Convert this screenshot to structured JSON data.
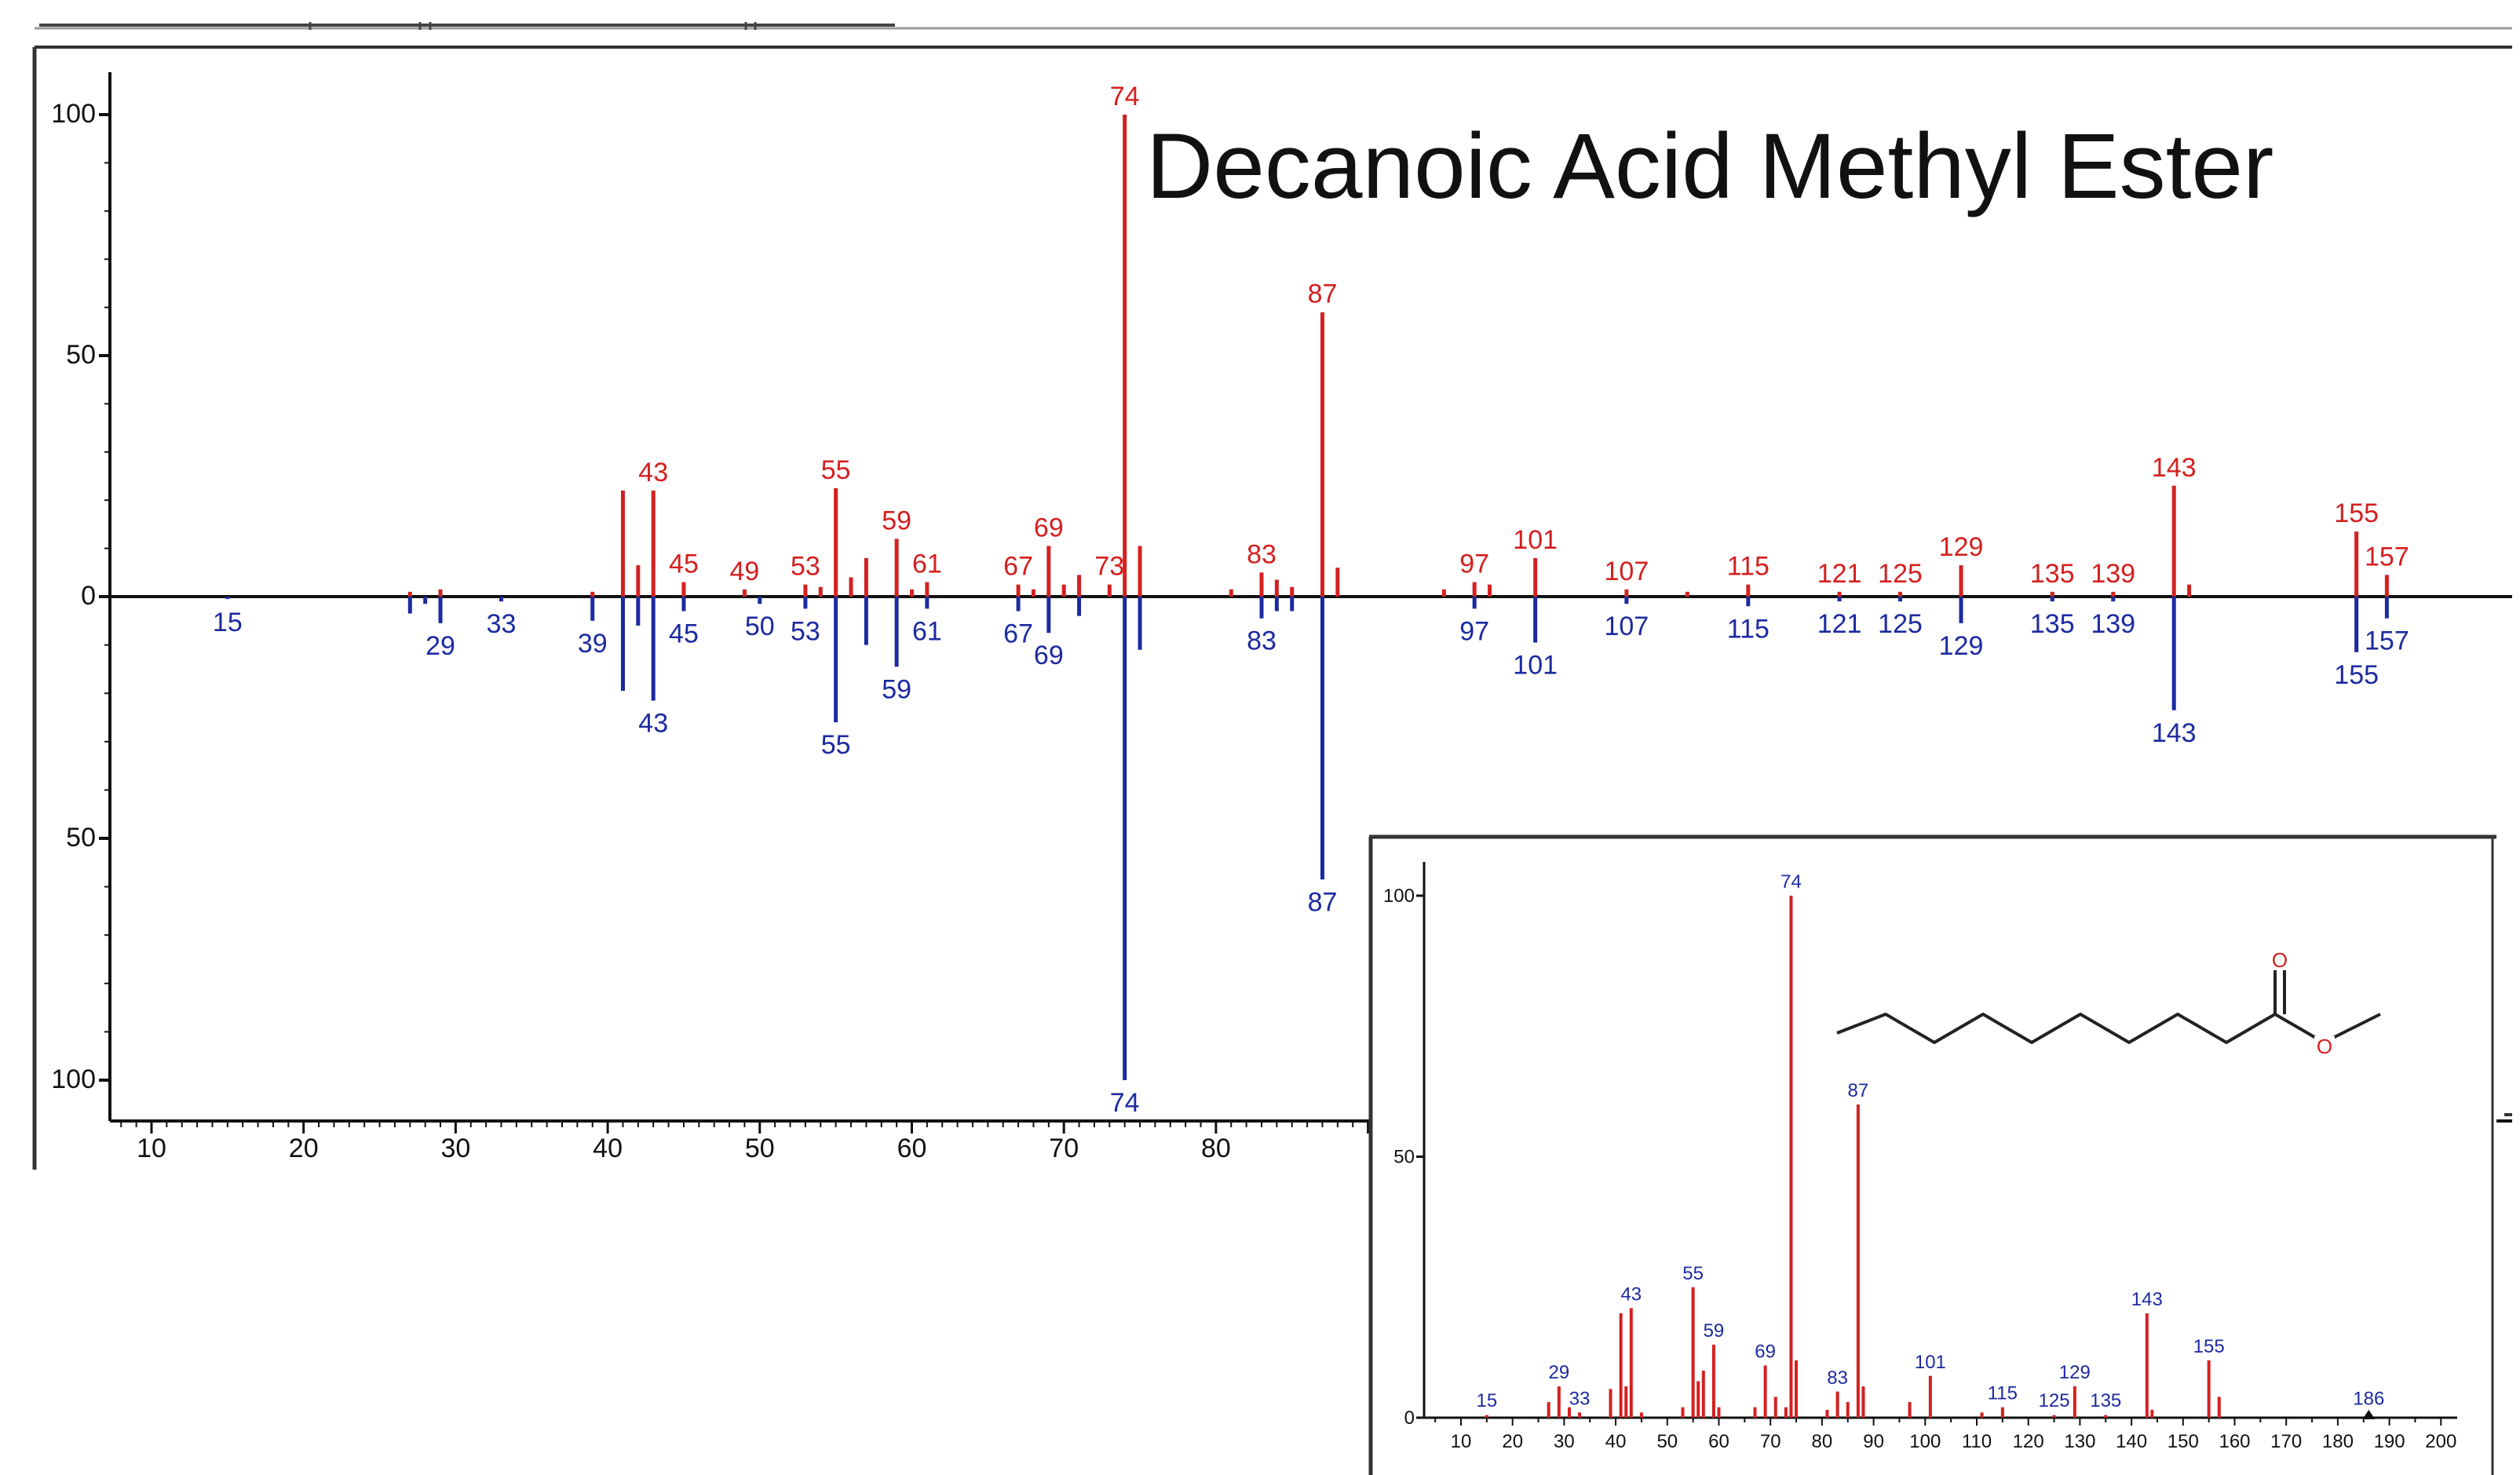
{
  "colors": {
    "library": "#d42020",
    "sample": "#1c2aa0",
    "axis": "#111111",
    "frame": "#222222",
    "title": "#111111"
  },
  "chart_data": [
    {
      "type": "bar",
      "subtype": "mirror-mass-spectrum",
      "title": "Decanoic Acid Methyl Ester",
      "xlabel": "",
      "ylabel": "",
      "xlim": [
        7,
        158
      ],
      "ylim_top": [
        0,
        100
      ],
      "ylim_bottom": [
        0,
        100
      ],
      "x_ticks": [
        10,
        20,
        30,
        40,
        50,
        60,
        70,
        80
      ],
      "x_tick_labels": [
        "10",
        "20",
        "30",
        "40",
        "50",
        "60",
        "70",
        "80"
      ],
      "y_ticks": [
        100,
        50,
        0,
        50,
        100
      ],
      "y_tick_labels": [
        "100",
        "50",
        "0",
        "50",
        "100"
      ],
      "grid": false,
      "series": [
        {
          "key": "top",
          "x": [
            27,
            29,
            39,
            41,
            42,
            43,
            45,
            49,
            53,
            54,
            55,
            56,
            57,
            59,
            60,
            61,
            67,
            68,
            69,
            70,
            71,
            73,
            74,
            75,
            81,
            83,
            84,
            85,
            87,
            88,
            95,
            97,
            98,
            101,
            107,
            111,
            115,
            121,
            125,
            129,
            135,
            139,
            143,
            144,
            155,
            157
          ],
          "values": [
            1,
            1.5,
            1,
            22,
            6.5,
            22,
            3,
            1.5,
            2.5,
            2,
            22.5,
            4,
            8,
            12,
            1.5,
            3,
            2.5,
            1.5,
            10.5,
            2.5,
            4.5,
            2.5,
            100,
            10.5,
            1.5,
            5,
            3.5,
            2,
            59,
            6,
            1.5,
            3,
            2.5,
            8,
            1.5,
            1,
            2.5,
            1,
            1,
            6.5,
            1,
            1,
            23,
            2.5,
            13.5,
            4.5
          ],
          "labels": [
            "",
            "",
            "",
            "",
            "",
            "43",
            "45",
            "49",
            "53",
            "",
            "55",
            "",
            "",
            "59",
            "",
            "61",
            "67",
            "",
            "69",
            "",
            "",
            "73",
            "74",
            "",
            "",
            "83",
            "",
            "",
            "87",
            "",
            "",
            "97",
            "",
            "101",
            "107",
            "",
            "115",
            "121",
            "125",
            "129",
            "135",
            "139",
            "143",
            "",
            "155",
            "157"
          ]
        },
        {
          "key": "bottom",
          "x": [
            15,
            27,
            28,
            29,
            33,
            39,
            41,
            42,
            43,
            45,
            50,
            53,
            55,
            57,
            59,
            61,
            67,
            69,
            71,
            74,
            75,
            83,
            84,
            85,
            87,
            97,
            101,
            107,
            115,
            121,
            125,
            129,
            135,
            139,
            143,
            155,
            157
          ],
          "values": [
            0.5,
            3.5,
            1.5,
            5.5,
            1,
            5,
            19.5,
            6,
            21.5,
            3,
            1.5,
            2.5,
            26,
            10,
            14.5,
            2.5,
            3,
            7.5,
            4,
            100,
            11,
            4.5,
            3,
            3,
            58.5,
            2.5,
            9.5,
            1.5,
            2,
            1,
            1,
            5.5,
            1,
            1,
            23.5,
            11.5,
            4.5
          ],
          "labels": [
            "15",
            "",
            "",
            "29",
            "33",
            "39",
            "",
            "",
            "43",
            "45",
            "50",
            "53",
            "55",
            "",
            "59",
            "61",
            "67",
            "69",
            "",
            "74",
            "",
            "83",
            "",
            "",
            "87",
            "97",
            "101",
            "107",
            "115",
            "121",
            "125",
            "129",
            "135",
            "139",
            "143",
            "155",
            "157"
          ]
        }
      ]
    },
    {
      "type": "bar",
      "subtype": "mass-spectrum-inset",
      "title": "",
      "xlabel": "",
      "ylabel": "",
      "xlim": [
        3,
        204
      ],
      "ylim": [
        0,
        105
      ],
      "x_ticks": [
        10,
        20,
        30,
        40,
        50,
        60,
        70,
        80,
        90,
        100,
        110,
        120,
        130,
        140,
        150,
        160,
        170,
        180,
        190,
        200
      ],
      "x_tick_labels": [
        "10",
        "20",
        "30",
        "40",
        "50",
        "60",
        "70",
        "80",
        "90",
        "100",
        "110",
        "120",
        "130",
        "140",
        "150",
        "160",
        "170",
        "180",
        "190",
        "200"
      ],
      "y_ticks": [
        0,
        50,
        100
      ],
      "y_tick_labels": [
        "0",
        "50",
        "100"
      ],
      "grid": false,
      "series": [
        {
          "x": [
            15,
            27,
            29,
            31,
            33,
            39,
            41,
            42,
            43,
            45,
            53,
            55,
            56,
            57,
            59,
            60,
            67,
            69,
            71,
            73,
            74,
            75,
            81,
            83,
            85,
            87,
            88,
            97,
            101,
            111,
            115,
            125,
            129,
            135,
            143,
            144,
            155,
            157,
            186
          ],
          "values": [
            0.5,
            3,
            6,
            2,
            1,
            5.5,
            20,
            6,
            21,
            1,
            2,
            25,
            7,
            9,
            14,
            2,
            2,
            10,
            4,
            2,
            100,
            11,
            1.5,
            5,
            3,
            60,
            6,
            3,
            8,
            1,
            2,
            0.5,
            6,
            0.5,
            20,
            1.5,
            11,
            4,
            1
          ],
          "labels": [
            "15",
            "",
            "29",
            "",
            "33",
            "",
            "",
            "",
            "43",
            "",
            "",
            "55",
            "",
            "",
            "59",
            "",
            "",
            "69",
            "",
            "",
            "74",
            "",
            "",
            "83",
            "",
            "87",
            "",
            "",
            "101",
            "",
            "115",
            "125",
            "129",
            "135",
            "143",
            "",
            "155",
            "",
            "186"
          ]
        }
      ]
    }
  ]
}
